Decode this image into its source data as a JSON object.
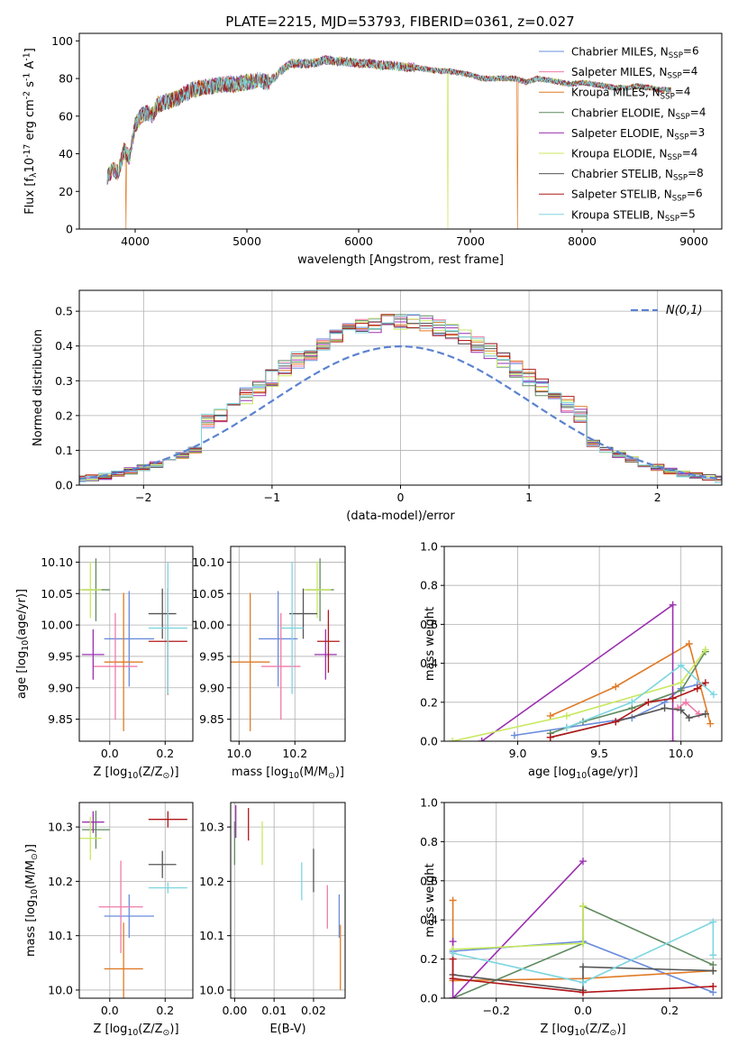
{
  "figure": {
    "title": "PLATE=2215, MJD=53793, FIBERID=0361, z=0.027",
    "series": [
      {
        "name": "Chabrier MILES, N$_{SSP}$=6",
        "label": "Chabrier MILES, N",
        "sub": "SSP",
        "tail": "=6",
        "color": "#6a8cdc"
      },
      {
        "name": "Salpeter MILES, N$_{SSP}$=4",
        "label": "Salpeter MILES, N",
        "sub": "SSP",
        "tail": "=4",
        "color": "#f07aa8"
      },
      {
        "name": "Kroupa MILES, N$_{SSP}$=4",
        "label": "Kroupa MILES, N",
        "sub": "SSP",
        "tail": "=4",
        "color": "#e07b27"
      },
      {
        "name": "Chabrier ELODIE, N$_{SSP}$=4",
        "label": "Chabrier ELODIE, N",
        "sub": "SSP",
        "tail": "=4",
        "color": "#5f8a5f"
      },
      {
        "name": "Salpeter ELODIE, N$_{SSP}$=3",
        "label": "Salpeter ELODIE, N",
        "sub": "SSP",
        "tail": "=3",
        "color": "#9b30b0"
      },
      {
        "name": "Kroupa ELODIE, N$_{SSP}$=4",
        "label": "Kroupa ELODIE, N",
        "sub": "SSP",
        "tail": "=4",
        "color": "#c8e860"
      },
      {
        "name": "Chabrier STELIB, N$_{SSP}$=8",
        "label": "Chabrier STELIB, N",
        "sub": "SSP",
        "tail": "=8",
        "color": "#555555"
      },
      {
        "name": "Salpeter STELIB, N$_{SSP}$=6",
        "label": "Salpeter STELIB, N",
        "sub": "SSP",
        "tail": "=6",
        "color": "#b01818"
      },
      {
        "name": "Kroupa STELIB, N$_{SSP}$=5",
        "label": "Kroupa STELIB, N",
        "sub": "SSP",
        "tail": "=5",
        "color": "#7dd6e0"
      }
    ]
  },
  "chart_data": [
    {
      "type": "line",
      "xlabel": "wavelength [Angstrom, rest frame]",
      "ylabel": "Flux [f$_λ$10$^{-17}$ erg cm$^{-2}$ s$^{-1}$ A$^{-1}$]",
      "xlim": [
        3500,
        9250
      ],
      "ylim": [
        0,
        104
      ],
      "xticks": [
        4000,
        5000,
        6000,
        7000,
        8000,
        9000
      ],
      "yticks": [
        0,
        20,
        40,
        60,
        80,
        100
      ],
      "grid": false,
      "legend": "upper right",
      "spectrum_envelope": {
        "x": [
          3750,
          3800,
          3850,
          3900,
          3950,
          4000,
          4050,
          4100,
          4150,
          4200,
          4300,
          4400,
          4500,
          4600,
          4700,
          4800,
          4900,
          5000,
          5100,
          5200,
          5300,
          5400,
          5500,
          5600,
          5700,
          5800,
          5900,
          6000,
          6100,
          6200,
          6300,
          6400,
          6500,
          6600,
          6700,
          6800,
          6900,
          7000,
          7100,
          7200,
          7300,
          7400,
          7500,
          7600,
          7700,
          7800,
          7900,
          8000,
          8100,
          8200,
          8300,
          8400,
          8500,
          8600,
          8700,
          8800
        ],
        "y": [
          28,
          32,
          30,
          42,
          38,
          55,
          60,
          62,
          60,
          66,
          68,
          70,
          74,
          75,
          76,
          77,
          77,
          78,
          79,
          78,
          84,
          88,
          88,
          88,
          90,
          89,
          89,
          88,
          88,
          87,
          87,
          86,
          86,
          85,
          84,
          84,
          83,
          82,
          80,
          80,
          80,
          80,
          78,
          80,
          79,
          78,
          77,
          78,
          77,
          76,
          75,
          75,
          76,
          75,
          74,
          74
        ]
      },
      "drops": [
        {
          "series": "Kroupa MILES, N$_{SSP}$=4",
          "x": 3920
        },
        {
          "series": "Kroupa ELODIE, N$_{SSP}$=4",
          "x": 6800
        },
        {
          "series": "Kroupa MILES, N$_{SSP}$=4",
          "x": 7420
        }
      ]
    },
    {
      "type": "histogram",
      "xlabel": "(data-model)/error",
      "ylabel": "Normed distribution",
      "xlim": [
        -2.5,
        2.5
      ],
      "ylim": [
        0,
        0.56
      ],
      "xticks": [
        -2,
        -1,
        0,
        1,
        2
      ],
      "yticks": [
        0.0,
        0.1,
        0.2,
        0.3,
        0.4,
        0.5
      ],
      "grid": true,
      "legend": "upper right",
      "reference": "$\\mathcal{N}(0,1)$",
      "bin_width": 0.1
    },
    {
      "type": "errorbar",
      "xlabel": "Z [log$_{10}$(Z/Z$_⊙$)]",
      "ylabel": "age  [log$_{10}$(age/yr)]",
      "xlim": [
        -0.11,
        0.3
      ],
      "ylim": [
        9.815,
        10.125
      ],
      "xticks": [
        0.0,
        0.2
      ],
      "yticks": [
        9.85,
        9.9,
        9.95,
        10.0,
        10.05,
        10.1
      ],
      "points": [
        {
          "x": 0.07,
          "xe": 0.09,
          "y": 9.978,
          "ye": 0.076
        },
        {
          "x": 0.02,
          "xe": 0.08,
          "y": 9.934,
          "ye": 0.085
        },
        {
          "x": 0.05,
          "xe": 0.07,
          "y": 9.941,
          "ye": 0.11
        },
        {
          "x": -0.05,
          "xe": 0.05,
          "y": 10.056,
          "ye": 0.05
        },
        {
          "x": -0.06,
          "xe": 0.04,
          "y": 9.953,
          "ye": 0.04
        },
        {
          "x": -0.07,
          "xe": 0.04,
          "y": 10.056,
          "ye": 0.045
        },
        {
          "x": 0.19,
          "xe": 0.05,
          "y": 10.018,
          "ye": 0.04
        },
        {
          "x": 0.21,
          "xe": 0.07,
          "y": 9.974,
          "ye": 0.085
        },
        {
          "x": 0.21,
          "xe": 0.07,
          "y": 9.995,
          "ye": 0.105
        }
      ]
    },
    {
      "type": "errorbar",
      "xlabel": "mass [log$_{10}$(M/M$_⊙$)]",
      "ylabel": "",
      "xlim": [
        9.97,
        10.38
      ],
      "ylim": [
        9.815,
        10.125
      ],
      "xticks": [
        10.0,
        10.2
      ],
      "yticks": [
        9.85,
        9.9,
        9.95,
        10.0,
        10.05,
        10.1
      ],
      "points": [
        {
          "x": 10.14,
          "xe": 0.07,
          "y": 9.978,
          "ye": 0.076
        },
        {
          "x": 10.15,
          "xe": 0.07,
          "y": 9.934,
          "ye": 0.085
        },
        {
          "x": 10.04,
          "xe": 0.07,
          "y": 9.941,
          "ye": 0.11
        },
        {
          "x": 10.29,
          "xe": 0.05,
          "y": 10.056,
          "ye": 0.05
        },
        {
          "x": 10.31,
          "xe": 0.04,
          "y": 9.953,
          "ye": 0.04
        },
        {
          "x": 10.28,
          "xe": 0.05,
          "y": 10.056,
          "ye": 0.045
        },
        {
          "x": 10.23,
          "xe": 0.05,
          "y": 10.018,
          "ye": 0.04
        },
        {
          "x": 10.32,
          "xe": 0.04,
          "y": 9.974,
          "ye": 0.05
        },
        {
          "x": 10.19,
          "xe": 0.04,
          "y": 9.995,
          "ye": 0.105
        }
      ]
    },
    {
      "type": "line",
      "xlabel": "age  [log$_{10}$(age/yr)]",
      "ylabel": "mass weight",
      "xlim": [
        8.55,
        10.25
      ],
      "ylim": [
        0,
        1
      ],
      "xticks": [
        9.0,
        9.5,
        10.0
      ],
      "yticks": [
        0.0,
        0.2,
        0.4,
        0.6,
        0.8,
        1.0
      ],
      "grid": true,
      "lines": [
        {
          "x": [
            8.98,
            9.3,
            9.7,
            9.9,
            10.0,
            10.1
          ],
          "y": [
            0.03,
            0.07,
            0.12,
            0.2,
            0.27,
            0.29
          ]
        },
        {
          "x": [
            9.98,
            10.03,
            10.11
          ],
          "y": [
            0.17,
            0.2,
            0.14
          ]
        },
        {
          "x": [
            9.2,
            9.6,
            10.05,
            10.18
          ],
          "y": [
            0.13,
            0.28,
            0.5,
            0.09
          ]
        },
        {
          "x": [
            9.2,
            9.4,
            9.7,
            10.0,
            10.15
          ],
          "y": [
            0.04,
            0.1,
            0.17,
            0.26,
            0.46
          ]
        },
        {
          "x": [
            8.78,
            9.95,
            9.95
          ],
          "y": [
            0.0,
            0.7,
            0.0
          ]
        },
        {
          "x": [
            8.6,
            9.3,
            10.0,
            10.15
          ],
          "y": [
            0.0,
            0.13,
            0.3,
            0.47
          ]
        },
        {
          "x": [
            9.2,
            9.6,
            9.9,
            10.0,
            10.05,
            10.15
          ],
          "y": [
            0.02,
            0.1,
            0.17,
            0.16,
            0.12,
            0.14
          ]
        },
        {
          "x": [
            9.2,
            9.6,
            9.8,
            9.95,
            10.1,
            10.15
          ],
          "y": [
            0.02,
            0.1,
            0.2,
            0.22,
            0.27,
            0.3
          ]
        },
        {
          "x": [
            9.3,
            9.7,
            10.0,
            10.2
          ],
          "y": [
            0.07,
            0.2,
            0.39,
            0.24
          ]
        }
      ]
    },
    {
      "type": "errorbar",
      "xlabel": "Z [log$_{10}$(Z/Z$_⊙$)]",
      "ylabel": "mass [log$_{10}$(M/M$_⊙$)]",
      "xlim": [
        -0.11,
        0.3
      ],
      "ylim": [
        9.985,
        10.345
      ],
      "xticks": [
        0.0,
        0.2
      ],
      "yticks": [
        10.0,
        10.1,
        10.2,
        10.3
      ],
      "points": [
        {
          "x": 0.07,
          "xe": 0.09,
          "y": 10.136,
          "ye": 0.04
        },
        {
          "x": 0.04,
          "xe": 0.08,
          "y": 10.153,
          "ye": 0.085
        },
        {
          "x": 0.05,
          "xe": 0.07,
          "y": 10.039,
          "ye": 0.085
        },
        {
          "x": -0.05,
          "xe": 0.05,
          "y": 10.295,
          "ye": 0.035
        },
        {
          "x": -0.06,
          "xe": 0.04,
          "y": 10.309,
          "ye": 0.02
        },
        {
          "x": -0.07,
          "xe": 0.04,
          "y": 10.279,
          "ye": 0.04
        },
        {
          "x": 0.19,
          "xe": 0.05,
          "y": 10.231,
          "ye": 0.025
        },
        {
          "x": 0.21,
          "xe": 0.07,
          "y": 10.314,
          "ye": 0.015
        },
        {
          "x": 0.21,
          "xe": 0.07,
          "y": 10.188,
          "ye": 0.01
        }
      ]
    },
    {
      "type": "errorbar",
      "xlabel": "E(B-V)",
      "ylabel": "",
      "xlim": [
        -0.001,
        0.028
      ],
      "ylim": [
        9.985,
        10.345
      ],
      "xticks": [
        0.0,
        0.01,
        0.02
      ],
      "yticks": [
        10.0,
        10.1,
        10.2,
        10.3
      ],
      "points": [
        {
          "x": 0.0265,
          "y": 10.136,
          "ye": 0.04
        },
        {
          "x": 0.0235,
          "y": 10.153,
          "ye": 0.04
        },
        {
          "x": 0.0268,
          "y": 10.06,
          "ye": 0.06
        },
        {
          "x": 0.0,
          "y": 10.27,
          "ye": 0.04
        },
        {
          "x": 0.0003,
          "y": 10.31,
          "ye": 0.03
        },
        {
          "x": 0.007,
          "y": 10.27,
          "ye": 0.04
        },
        {
          "x": 0.02,
          "y": 10.22,
          "ye": 0.04
        },
        {
          "x": 0.0035,
          "y": 10.305,
          "ye": 0.03
        },
        {
          "x": 0.017,
          "y": 10.2,
          "ye": 0.035
        }
      ]
    },
    {
      "type": "line",
      "xlabel": "Z [log$_{10}$(Z/Z$_⊙$)]",
      "ylabel": "mass weight",
      "xlim": [
        -0.32,
        0.32
      ],
      "ylim": [
        0,
        1
      ],
      "xticks": [
        -0.2,
        0.0,
        0.2
      ],
      "yticks": [
        0.0,
        0.2,
        0.4,
        0.6,
        0.8,
        1.0
      ],
      "grid": true,
      "lines": [
        {
          "x": [
            -0.3,
            0.0,
            0.3
          ],
          "y": [
            0.24,
            0.29,
            0.03
          ]
        },
        {
          "x": [
            -0.3,
            0.0,
            0.3
          ],
          "y": [
            0.1,
            0.03,
            0.06
          ]
        },
        {
          "x": [
            -0.3,
            -0.3,
            0.0,
            0.3
          ],
          "y": [
            0.5,
            0.09,
            0.1,
            0.14
          ]
        },
        {
          "x": [
            -0.3,
            0.0,
            0.0,
            0.3
          ],
          "y": [
            0.0,
            0.28,
            0.47,
            0.17
          ]
        },
        {
          "x": [
            -0.3,
            -0.3,
            0.0
          ],
          "y": [
            0.29,
            0.0,
            0.7
          ]
        },
        {
          "x": [
            -0.3,
            0.0,
            0.0
          ],
          "y": [
            0.25,
            0.28,
            0.47
          ]
        },
        {
          "x": [
            -0.3,
            0.0,
            0.0,
            0.3
          ],
          "y": [
            0.12,
            0.04,
            0.16,
            0.14
          ]
        },
        {
          "x": [
            -0.3,
            -0.3,
            0.0,
            0.3
          ],
          "y": [
            0.2,
            0.1,
            0.03,
            0.06
          ]
        },
        {
          "x": [
            -0.3,
            0.0,
            0.3,
            0.3
          ],
          "y": [
            0.23,
            0.08,
            0.39,
            0.22
          ]
        }
      ]
    }
  ]
}
